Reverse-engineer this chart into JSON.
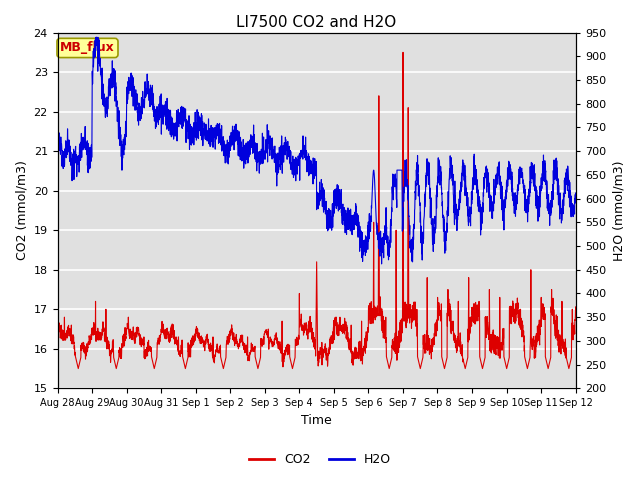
{
  "title": "LI7500 CO2 and H2O",
  "xlabel": "Time",
  "ylabel_left": "CO2 (mmol/m3)",
  "ylabel_right": "H2O (mmol/m3)",
  "co2_ylim": [
    15.0,
    24.0
  ],
  "h2o_ylim": [
    200,
    950
  ],
  "co2_color": "#dd0000",
  "h2o_color": "#0000dd",
  "background_color": "#ffffff",
  "plot_bg_color": "#e0e0e0",
  "annotation_text": "MB_flux",
  "annotation_bg": "#ffff99",
  "annotation_border": "#cccc00",
  "annotation_text_color": "#cc0000",
  "x_tick_labels": [
    "Aug 28",
    "Aug 29",
    "Aug 30",
    "Aug 31",
    "Sep 1",
    "Sep 2",
    "Sep 3",
    "Sep 4",
    "Sep 5",
    "Sep 6",
    "Sep 7",
    "Sep 8",
    "Sep 9",
    "Sep 10",
    "Sep 11",
    "Sep 12"
  ],
  "h2o_yticks": [
    200,
    250,
    300,
    350,
    400,
    450,
    500,
    550,
    600,
    650,
    700,
    750,
    800,
    850,
    900,
    950
  ],
  "co2_yticks": [
    15.0,
    16.0,
    17.0,
    18.0,
    19.0,
    20.0,
    21.0,
    22.0,
    23.0,
    24.0
  ],
  "figsize": [
    6.4,
    4.8
  ],
  "dpi": 100
}
